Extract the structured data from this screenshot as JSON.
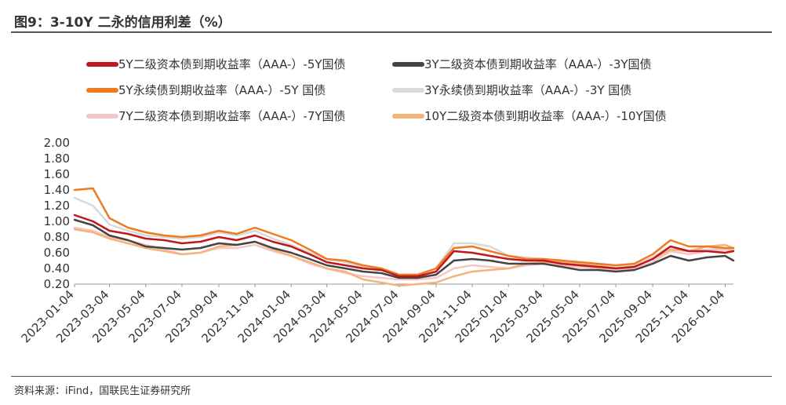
{
  "header": {
    "title": "图9：3-10Y 二永的信用利差（%）"
  },
  "footer": {
    "source": "资料来源：iFind，国联民生证券研究所"
  },
  "chart_data": {
    "type": "line",
    "title": "图9：3-10Y 二永的信用利差（%）",
    "xlabel": "",
    "ylabel": "",
    "ylim": [
      0.2,
      2.0
    ],
    "yticks": [
      "2.00",
      "1.80",
      "1.60",
      "1.40",
      "1.20",
      "1.00",
      "0.80",
      "0.60",
      "0.40",
      "0.20"
    ],
    "xticks": [
      "2023-01-04",
      "2023-03-04",
      "2023-05-04",
      "2023-07-04",
      "2023-09-04",
      "2023-11-04",
      "2024-01-04",
      "2024-03-04",
      "2024-05-04",
      "2024-07-04",
      "2024-09-04",
      "2024-11-04",
      "2025-01-04",
      "2025-03-04",
      "2025-05-04",
      "2025-07-04",
      "2025-09-04",
      "2025-11-04",
      "2026-01-04"
    ],
    "legend_position": "top",
    "grid": false,
    "x": [
      "2023-01-04",
      "2023-02-04",
      "2023-03-04",
      "2023-04-04",
      "2023-05-04",
      "2023-06-04",
      "2023-07-04",
      "2023-08-04",
      "2023-09-04",
      "2023-10-04",
      "2023-11-04",
      "2023-12-04",
      "2024-01-04",
      "2024-02-04",
      "2024-03-04",
      "2024-04-04",
      "2024-05-04",
      "2024-06-04",
      "2024-07-04",
      "2024-08-04",
      "2024-09-04",
      "2024-10-04",
      "2024-11-04",
      "2024-12-04",
      "2025-01-04",
      "2025-02-04",
      "2025-03-04",
      "2025-04-04",
      "2025-05-04",
      "2025-06-04",
      "2025-07-04",
      "2025-08-04",
      "2025-09-04",
      "2025-10-04",
      "2025-11-04",
      "2025-12-04",
      "2026-01-04",
      "2026-01-18"
    ],
    "series": [
      {
        "name": "5Y二级资本债到期收益率（AAA-）-5Y国债",
        "color": "#c0161c",
        "values": [
          1.08,
          1.0,
          0.88,
          0.84,
          0.78,
          0.76,
          0.72,
          0.74,
          0.8,
          0.76,
          0.82,
          0.74,
          0.68,
          0.58,
          0.48,
          0.44,
          0.4,
          0.38,
          0.3,
          0.3,
          0.36,
          0.62,
          0.6,
          0.56,
          0.52,
          0.5,
          0.5,
          0.46,
          0.44,
          0.42,
          0.4,
          0.42,
          0.52,
          0.68,
          0.62,
          0.62,
          0.6,
          0.62
        ]
      },
      {
        "name": "3Y二级资本债到期收益率（AAA-）-3Y国债",
        "color": "#444444",
        "values": [
          1.02,
          0.95,
          0.82,
          0.76,
          0.68,
          0.66,
          0.64,
          0.66,
          0.72,
          0.7,
          0.74,
          0.66,
          0.6,
          0.52,
          0.44,
          0.4,
          0.36,
          0.34,
          0.28,
          0.28,
          0.32,
          0.5,
          0.52,
          0.5,
          0.46,
          0.46,
          0.46,
          0.42,
          0.38,
          0.38,
          0.36,
          0.38,
          0.46,
          0.56,
          0.5,
          0.54,
          0.56,
          0.5
        ]
      },
      {
        "name": "5Y永续债到期收益率（AAA-）-5Y 国债",
        "color": "#ee7a22",
        "values": [
          1.4,
          1.42,
          1.04,
          0.92,
          0.86,
          0.82,
          0.8,
          0.82,
          0.88,
          0.84,
          0.92,
          0.84,
          0.76,
          0.64,
          0.52,
          0.5,
          0.44,
          0.4,
          0.32,
          0.32,
          0.4,
          0.66,
          0.68,
          0.62,
          0.56,
          0.52,
          0.52,
          0.5,
          0.48,
          0.46,
          0.44,
          0.46,
          0.58,
          0.76,
          0.68,
          0.68,
          0.66,
          0.66
        ]
      },
      {
        "name": "3Y永续债到期收益率（AAA-）-3Y 国债",
        "color": "#d9d9d9",
        "values": [
          1.3,
          1.2,
          0.96,
          0.88,
          0.82,
          0.8,
          0.78,
          0.8,
          0.86,
          0.82,
          0.88,
          0.78,
          0.7,
          0.6,
          0.52,
          0.48,
          0.42,
          0.4,
          0.32,
          0.32,
          0.4,
          0.72,
          0.72,
          0.68,
          0.56,
          0.54,
          0.52,
          0.5,
          0.46,
          0.44,
          0.42,
          0.44,
          0.54,
          0.68,
          0.62,
          0.64,
          0.66,
          0.64
        ]
      },
      {
        "name": "7Y二级资本债到期收益率（AAA-）-7Y国债",
        "color": "#f6c6c6",
        "values": [
          0.92,
          0.88,
          0.8,
          0.76,
          0.7,
          0.64,
          0.58,
          0.6,
          0.66,
          0.66,
          0.7,
          0.62,
          0.56,
          0.46,
          0.4,
          0.34,
          0.3,
          0.28,
          0.26,
          0.26,
          0.28,
          0.4,
          0.44,
          0.42,
          0.4,
          0.44,
          0.46,
          0.44,
          0.42,
          0.4,
          0.38,
          0.4,
          0.48,
          0.62,
          0.58,
          0.62,
          0.64,
          0.62
        ]
      },
      {
        "name": "10Y二级资本债到期收益率（AAA-）-10Y国债",
        "color": "#f5b27a",
        "values": [
          0.9,
          0.86,
          0.78,
          0.72,
          0.66,
          0.62,
          0.58,
          0.6,
          0.68,
          0.7,
          0.74,
          0.64,
          0.56,
          0.48,
          0.4,
          0.36,
          0.26,
          0.22,
          0.18,
          0.2,
          0.22,
          0.3,
          0.36,
          0.38,
          0.4,
          0.46,
          0.48,
          0.48,
          0.46,
          0.44,
          0.4,
          0.42,
          0.52,
          0.64,
          0.62,
          0.68,
          0.7,
          0.66
        ]
      }
    ]
  }
}
